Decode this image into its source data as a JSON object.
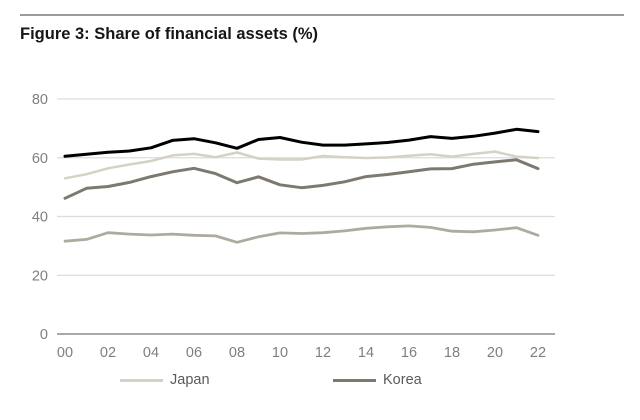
{
  "figure": {
    "title": "Figure 3: Share of financial assets (%)"
  },
  "chart_data": {
    "type": "line",
    "title": "Figure 3: Share of financial assets (%)",
    "xlabel": "",
    "ylabel": "",
    "x_years": [
      2000,
      2001,
      2002,
      2003,
      2004,
      2005,
      2006,
      2007,
      2008,
      2009,
      2010,
      2011,
      2012,
      2013,
      2014,
      2015,
      2016,
      2017,
      2018,
      2019,
      2020,
      2021,
      2022
    ],
    "x_tick_labels": [
      "00",
      "02",
      "04",
      "06",
      "08",
      "10",
      "12",
      "14",
      "16",
      "18",
      "20",
      "22"
    ],
    "y_ticks": [
      0,
      20,
      40,
      60,
      80
    ],
    "ylim": [
      0,
      80
    ],
    "grid": "horizontal",
    "grid_color": "#dcdcdc",
    "axis_color": "#9c9c9c",
    "tick_label_color": "#7f7f7f",
    "legend_position": "bottom",
    "series": [
      {
        "id": "unlabeled-black",
        "legend_label": null,
        "color": "#000000",
        "values": [
          60.5,
          61.2,
          61.9,
          62.3,
          63.4,
          65.9,
          66.5,
          65.1,
          63.2,
          66.2,
          66.9,
          65.3,
          64.3,
          64.3,
          64.7,
          65.2,
          66.0,
          67.2,
          66.6,
          67.3,
          68.4,
          69.7,
          68.9
        ]
      },
      {
        "id": "japan",
        "legend_label": "Japan",
        "color": "#d6d1c5",
        "values": [
          53.0,
          54.4,
          56.4,
          57.7,
          58.9,
          60.8,
          61.3,
          60.2,
          61.8,
          59.7,
          59.4,
          59.4,
          60.6,
          60.2,
          59.9,
          60.1,
          60.7,
          61.2,
          60.4,
          61.3,
          62.1,
          60.4,
          59.9
        ]
      },
      {
        "id": "korea",
        "legend_label": "Korea",
        "color": "#7d7971",
        "values": [
          46.2,
          49.6,
          50.2,
          51.6,
          53.6,
          55.2,
          56.4,
          54.6,
          51.5,
          53.5,
          50.8,
          49.8,
          50.6,
          51.8,
          53.6,
          54.3,
          55.2,
          56.2,
          56.3,
          57.8,
          58.6,
          59.3,
          56.3
        ]
      },
      {
        "id": "unlabeled-sage",
        "legend_label": null,
        "color": "#aeab9e",
        "values": [
          31.6,
          32.2,
          34.5,
          34.0,
          33.7,
          34.0,
          33.6,
          33.4,
          31.2,
          33.1,
          34.4,
          34.2,
          34.5,
          35.1,
          36.0,
          36.5,
          36.8,
          36.3,
          35.0,
          34.8,
          35.4,
          36.2,
          33.6
        ]
      }
    ],
    "legend": [
      {
        "label": "Japan",
        "color": "#d6d1c5"
      },
      {
        "label": "Korea",
        "color": "#7d7971"
      }
    ]
  }
}
